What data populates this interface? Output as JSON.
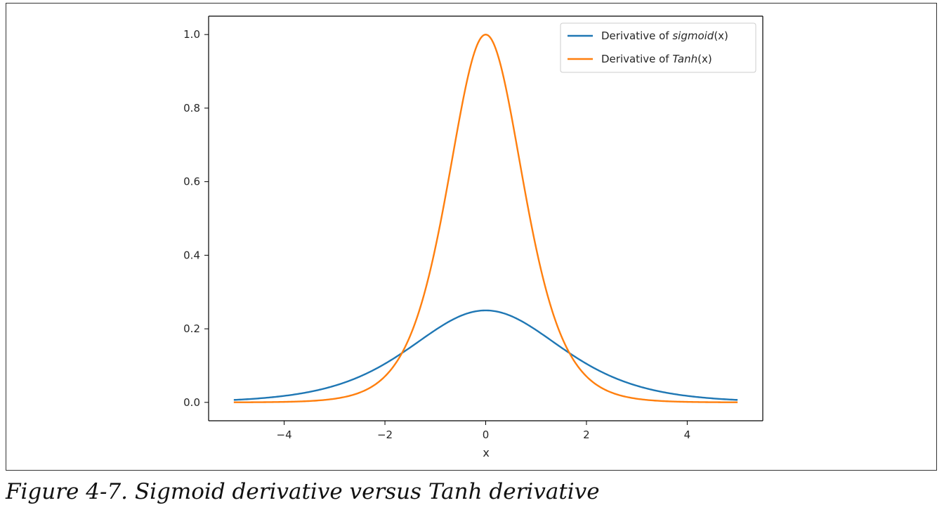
{
  "chart_data": {
    "type": "line",
    "title": "",
    "xlabel": "x",
    "ylabel": "",
    "xlim": [
      -5.5,
      5.5
    ],
    "ylim": [
      -0.05,
      1.05
    ],
    "xticks": [
      -4,
      -2,
      0,
      2,
      4
    ],
    "xtick_labels": [
      "−4",
      "−2",
      "0",
      "2",
      "4"
    ],
    "yticks": [
      0.0,
      0.2,
      0.4,
      0.6,
      0.8,
      1.0
    ],
    "ytick_labels": [
      "0.0",
      "0.2",
      "0.4",
      "0.6",
      "0.8",
      "1.0"
    ],
    "x_range": [
      -5,
      5
    ],
    "series": [
      {
        "name": "Derivative of sigmoid(x)",
        "legend_prefix": "Derivative of ",
        "legend_func": "sigmoid",
        "legend_arg": "(x)",
        "color": "#1f77b4",
        "function": "sigmoid_derivative",
        "x": [
          -5,
          -4,
          -3,
          -2,
          -1,
          0,
          1,
          2,
          3,
          4,
          5
        ],
        "y": [
          0.0066,
          0.0177,
          0.0452,
          0.105,
          0.1966,
          0.25,
          0.1966,
          0.105,
          0.0452,
          0.0177,
          0.0066
        ]
      },
      {
        "name": "Derivative of Tanh(x)",
        "legend_prefix": "Derivative of ",
        "legend_func": "Tanh",
        "legend_arg": "(x)",
        "color": "#ff7f0e",
        "function": "tanh_derivative",
        "x": [
          -5,
          -4,
          -3,
          -2,
          -1,
          0,
          1,
          2,
          3,
          4,
          5
        ],
        "y": [
          0.0002,
          0.0013,
          0.0099,
          0.0707,
          0.42,
          1.0,
          0.42,
          0.0707,
          0.0099,
          0.0013,
          0.0002
        ]
      }
    ],
    "legend_location": "upper-right"
  },
  "caption": "Figure 4-7. Sigmoid derivative versus Tanh derivative"
}
